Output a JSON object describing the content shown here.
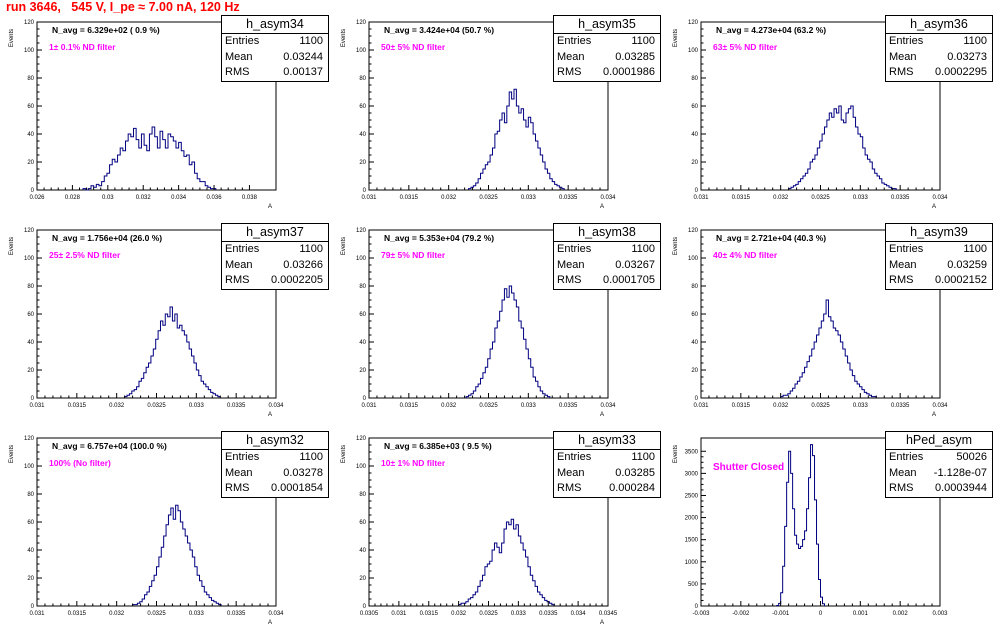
{
  "page": {
    "title": "run 3646,   545 V, I_pe ≈ 7.00 nA, 120 Hz",
    "title_color": "#ff0000",
    "hist_color": "#000080",
    "annotation_color": "#ff00ff"
  },
  "chart_data": [
    {
      "type": "histogram",
      "stats": {
        "name": "h_asym34",
        "entries_label": "Entries",
        "entries": "1100",
        "mean_label": "Mean",
        "mean": "0.03244",
        "rms_label": "RMS",
        "rms": "0.00137"
      },
      "n_avg": "N_avg = 6.329e+02 ( 0.9 %)",
      "filter": "1± 0.1% ND filter",
      "ylabel": "Events",
      "xlabel": "A",
      "xlim": [
        0.026,
        0.0395
      ],
      "ylim": [
        0,
        120
      ],
      "xticks": [
        0.026,
        0.028,
        0.03,
        0.032,
        0.034,
        0.036,
        0.038
      ],
      "xtick_labels": [
        "0.026",
        "0.028",
        "0.03",
        "0.032",
        "0.034",
        "0.036",
        "0.038"
      ],
      "yticks": [
        0,
        20,
        40,
        60,
        80,
        100,
        120
      ],
      "ytick_labels": [
        "0",
        "20",
        "40",
        "60",
        "80",
        "100",
        "120"
      ],
      "bin_start": 0.0286,
      "bin_width": 0.00015,
      "counts": [
        1,
        0,
        1,
        3,
        2,
        4,
        3,
        6,
        10,
        12,
        18,
        22,
        20,
        25,
        30,
        28,
        35,
        40,
        38,
        44,
        36,
        30,
        40,
        32,
        28,
        40,
        45,
        38,
        30,
        42,
        36,
        30,
        40,
        38,
        35,
        30,
        34,
        28,
        24,
        25,
        18,
        20,
        12,
        8,
        6,
        6,
        3,
        2,
        1,
        1
      ]
    },
    {
      "type": "histogram",
      "stats": {
        "name": "h_asym35",
        "entries_label": "Entries",
        "entries": "1100",
        "mean_label": "Mean",
        "mean": "0.03285",
        "rms_label": "RMS",
        "rms": "0.0001986"
      },
      "n_avg": "N_avg = 3.424e+04 (50.7 %)",
      "filter": "50± 5% ND filter",
      "ylabel": "Events",
      "xlabel": "A",
      "xlim": [
        0.031,
        0.034
      ],
      "ylim": [
        0,
        120
      ],
      "xticks": [
        0.031,
        0.0315,
        0.032,
        0.0325,
        0.033,
        0.0335,
        0.034
      ],
      "xtick_labels": [
        "0.031",
        "0.0315",
        "0.032",
        "0.0325",
        "0.033",
        "0.0335",
        "0.034"
      ],
      "yticks": [
        0,
        20,
        40,
        60,
        80,
        100,
        120
      ],
      "ytick_labels": [
        "0",
        "20",
        "40",
        "60",
        "80",
        "100",
        "120"
      ],
      "bin_start": 0.03225,
      "bin_width": 3e-05,
      "counts": [
        1,
        2,
        3,
        5,
        8,
        12,
        15,
        18,
        20,
        25,
        30,
        40,
        42,
        50,
        55,
        48,
        60,
        70,
        65,
        72,
        60,
        55,
        58,
        50,
        45,
        52,
        48,
        40,
        35,
        30,
        25,
        20,
        15,
        12,
        8,
        6,
        4,
        3,
        2,
        1
      ]
    },
    {
      "type": "histogram",
      "stats": {
        "name": "h_asym36",
        "entries_label": "Entries",
        "entries": "1100",
        "mean_label": "Mean",
        "mean": "0.03273",
        "rms_label": "RMS",
        "rms": "0.0002295"
      },
      "n_avg": "N_avg = 4.273e+04 (63.2 %)",
      "filter": "63± 5% ND filter",
      "ylabel": "Events",
      "xlabel": "A",
      "xlim": [
        0.031,
        0.034
      ],
      "ylim": [
        0,
        120
      ],
      "xticks": [
        0.031,
        0.0315,
        0.032,
        0.0325,
        0.033,
        0.0335,
        0.034
      ],
      "xtick_labels": [
        "0.031",
        "0.0315",
        "0.032",
        "0.0325",
        "0.033",
        "0.0335",
        "0.034"
      ],
      "yticks": [
        0,
        20,
        40,
        60,
        80,
        100,
        120
      ],
      "ytick_labels": [
        "0",
        "20",
        "40",
        "60",
        "80",
        "100",
        "120"
      ],
      "bin_start": 0.0321,
      "bin_width": 3e-05,
      "counts": [
        1,
        2,
        3,
        4,
        6,
        8,
        10,
        12,
        15,
        20,
        22,
        25,
        30,
        35,
        40,
        45,
        50,
        55,
        52,
        58,
        55,
        60,
        50,
        48,
        55,
        58,
        60,
        52,
        45,
        40,
        38,
        30,
        25,
        22,
        20,
        15,
        12,
        10,
        8,
        5,
        4,
        3,
        2,
        1,
        1
      ]
    },
    {
      "type": "histogram",
      "stats": {
        "name": "h_asym37",
        "entries_label": "Entries",
        "entries": "1100",
        "mean_label": "Mean",
        "mean": "0.03266",
        "rms_label": "RMS",
        "rms": "0.0002205"
      },
      "n_avg": "N_avg = 1.756e+04 (26.0 %)",
      "filter": "25± 2.5% ND filter",
      "ylabel": "Events",
      "xlabel": "A",
      "xlim": [
        0.031,
        0.034
      ],
      "ylim": [
        0,
        120
      ],
      "xticks": [
        0.031,
        0.0315,
        0.032,
        0.0325,
        0.033,
        0.0335,
        0.034
      ],
      "xtick_labels": [
        "0.031",
        "0.0315",
        "0.032",
        "0.0325",
        "0.033",
        "0.0335",
        "0.034"
      ],
      "yticks": [
        0,
        20,
        40,
        60,
        80,
        100,
        120
      ],
      "ytick_labels": [
        "0",
        "20",
        "40",
        "60",
        "80",
        "100",
        "120"
      ],
      "bin_start": 0.0321,
      "bin_width": 3e-05,
      "counts": [
        1,
        2,
        3,
        5,
        6,
        8,
        12,
        14,
        18,
        22,
        25,
        30,
        35,
        42,
        48,
        55,
        52,
        60,
        58,
        65,
        55,
        60,
        50,
        52,
        48,
        45,
        40,
        35,
        30,
        25,
        20,
        16,
        12,
        10,
        8,
        6,
        4,
        3,
        2,
        1
      ]
    },
    {
      "type": "histogram",
      "stats": {
        "name": "h_asym38",
        "entries_label": "Entries",
        "entries": "1100",
        "mean_label": "Mean",
        "mean": "0.03267",
        "rms_label": "RMS",
        "rms": "0.0001705"
      },
      "n_avg": "N_avg = 5.353e+04 (79.2 %)",
      "filter": "79± 5% ND filter",
      "ylabel": "Events",
      "xlabel": "A",
      "xlim": [
        0.031,
        0.034
      ],
      "ylim": [
        0,
        120
      ],
      "xticks": [
        0.031,
        0.0315,
        0.032,
        0.0325,
        0.033,
        0.0335,
        0.034
      ],
      "xtick_labels": [
        "0.031",
        "0.0315",
        "0.032",
        "0.0325",
        "0.033",
        "0.0335",
        "0.034"
      ],
      "yticks": [
        0,
        20,
        40,
        60,
        80,
        100,
        120
      ],
      "ytick_labels": [
        "0",
        "20",
        "40",
        "60",
        "80",
        "100",
        "120"
      ],
      "bin_start": 0.03222,
      "bin_width": 3e-05,
      "counts": [
        1,
        2,
        3,
        5,
        8,
        10,
        14,
        18,
        22,
        28,
        35,
        40,
        50,
        55,
        62,
        70,
        78,
        72,
        80,
        75,
        70,
        65,
        55,
        50,
        42,
        35,
        28,
        22,
        15,
        12,
        8,
        5,
        3,
        2,
        1
      ]
    },
    {
      "type": "histogram",
      "stats": {
        "name": "h_asym39",
        "entries_label": "Entries",
        "entries": "1100",
        "mean_label": "Mean",
        "mean": "0.03259",
        "rms_label": "RMS",
        "rms": "0.0002152"
      },
      "n_avg": "N_avg = 2.721e+04 (40.3 %)",
      "filter": "40± 4% ND filter",
      "ylabel": "Events",
      "xlabel": "A",
      "xlim": [
        0.031,
        0.034
      ],
      "ylim": [
        0,
        120
      ],
      "xticks": [
        0.031,
        0.0315,
        0.032,
        0.0325,
        0.033,
        0.0335,
        0.034
      ],
      "xtick_labels": [
        "0.031",
        "0.0315",
        "0.032",
        "0.0325",
        "0.033",
        "0.0335",
        "0.034"
      ],
      "yticks": [
        0,
        20,
        40,
        60,
        80,
        100,
        120
      ],
      "ytick_labels": [
        "0",
        "20",
        "40",
        "60",
        "80",
        "100",
        "120"
      ],
      "bin_start": 0.032,
      "bin_width": 3e-05,
      "counts": [
        1,
        2,
        2,
        3,
        5,
        7,
        10,
        12,
        15,
        18,
        22,
        26,
        30,
        35,
        40,
        45,
        50,
        55,
        60,
        70,
        58,
        55,
        50,
        48,
        45,
        40,
        35,
        30,
        25,
        20,
        16,
        12,
        10,
        8,
        6,
        4,
        3,
        2,
        1,
        1
      ]
    },
    {
      "type": "histogram",
      "stats": {
        "name": "h_asym32",
        "entries_label": "Entries",
        "entries": "1100",
        "mean_label": "Mean",
        "mean": "0.03278",
        "rms_label": "RMS",
        "rms": "0.0001854"
      },
      "n_avg": "N_avg = 6.757e+04 (100.0 %)",
      "filter": "100% (No filter)",
      "ylabel": "Events",
      "xlabel": "A",
      "xlim": [
        0.031,
        0.034
      ],
      "ylim": [
        0,
        120
      ],
      "xticks": [
        0.031,
        0.0315,
        0.032,
        0.0325,
        0.033,
        0.0335,
        0.034
      ],
      "xtick_labels": [
        "0.031",
        "0.0315",
        "0.032",
        "0.0325",
        "0.033",
        "0.0335",
        "0.034"
      ],
      "yticks": [
        0,
        20,
        40,
        60,
        80,
        100,
        120
      ],
      "ytick_labels": [
        "0",
        "20",
        "40",
        "60",
        "80",
        "100",
        "120"
      ],
      "bin_start": 0.0322,
      "bin_width": 3e-05,
      "counts": [
        1,
        1,
        2,
        3,
        5,
        8,
        10,
        14,
        18,
        22,
        28,
        35,
        42,
        50,
        58,
        65,
        70,
        62,
        72,
        68,
        60,
        55,
        50,
        45,
        40,
        35,
        28,
        22,
        18,
        14,
        10,
        8,
        6,
        4,
        3,
        2,
        1
      ]
    },
    {
      "type": "histogram",
      "stats": {
        "name": "h_asym33",
        "entries_label": "Entries",
        "entries": "1100",
        "mean_label": "Mean",
        "mean": "0.03285",
        "rms_label": "RMS",
        "rms": "0.000284"
      },
      "n_avg": "N_avg = 6.385e+03 ( 9.5 %)",
      "filter": "10± 1% ND filter",
      "ylabel": "Events",
      "xlabel": "A",
      "xlim": [
        0.0305,
        0.0345
      ],
      "ylim": [
        0,
        120
      ],
      "xticks": [
        0.0305,
        0.031,
        0.0315,
        0.032,
        0.0325,
        0.033,
        0.0335,
        0.034,
        0.0345
      ],
      "xtick_labels": [
        "0.0305",
        "0.031",
        "0.0315",
        "0.032",
        "0.0325",
        "0.033",
        "0.0335",
        "0.034",
        "0.0345"
      ],
      "yticks": [
        0,
        20,
        40,
        60,
        80,
        100,
        120
      ],
      "ytick_labels": [
        "0",
        "20",
        "40",
        "60",
        "80",
        "100",
        "120"
      ],
      "bin_start": 0.032,
      "bin_width": 4e-05,
      "counts": [
        1,
        2,
        2,
        3,
        5,
        6,
        8,
        10,
        14,
        18,
        22,
        28,
        30,
        32,
        40,
        45,
        42,
        38,
        45,
        55,
        60,
        58,
        62,
        55,
        58,
        50,
        45,
        40,
        35,
        28,
        22,
        18,
        14,
        10,
        8,
        6,
        4,
        3,
        2,
        1
      ]
    },
    {
      "type": "histogram",
      "stats": {
        "name": "hPed_asym",
        "entries_label": "Entries",
        "entries": "50026",
        "mean_label": "Mean",
        "mean": "-1.128e-07",
        "rms_label": "RMS",
        "rms": "0.0003944"
      },
      "n_avg": "",
      "filter": "Shutter Closed",
      "ylabel": "Events",
      "xlabel": "",
      "xlim": [
        -0.003,
        0.003
      ],
      "ylim": [
        0,
        3800
      ],
      "xticks": [
        -0.003,
        -0.002,
        -0.001,
        0,
        0.001,
        0.002,
        0.003
      ],
      "xtick_labels": [
        "-0.003",
        "-0.002",
        "-0.001",
        "0",
        "0.001",
        "0.002",
        "0.003"
      ],
      "yticks": [
        0,
        500,
        1000,
        1500,
        2000,
        2500,
        3000,
        3500
      ],
      "ytick_labels": [
        "0",
        "500",
        "1000",
        "1500",
        "2000",
        "2500",
        "3000",
        "3500"
      ],
      "bin_start": -0.0011,
      "bin_width": 5e-05,
      "counts": [
        10,
        60,
        300,
        900,
        1800,
        2800,
        3500,
        3000,
        2200,
        1600,
        1400,
        1300,
        1350,
        1500,
        1700,
        2200,
        2900,
        3650,
        3400,
        2400,
        1400,
        600,
        200,
        50
      ]
    }
  ]
}
